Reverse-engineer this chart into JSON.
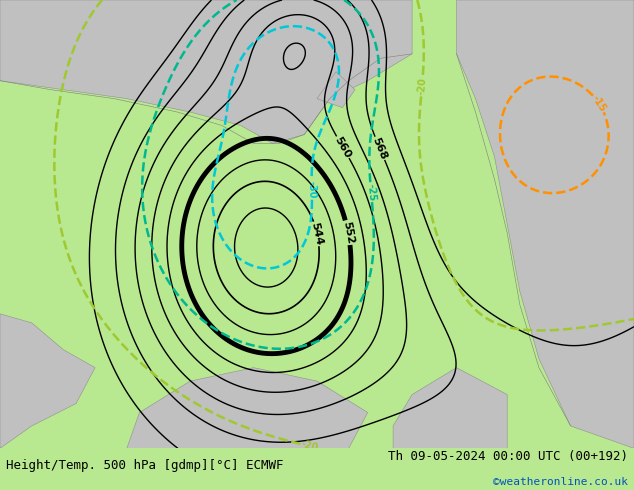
{
  "title_left": "Height/Temp. 500 hPa [gdmp][°C] ECMWF",
  "title_right": "Th 09-05-2024 00:00 UTC (00+192)",
  "watermark": "©weatheronline.co.uk",
  "background_color": "#b8e890",
  "land_color": "#c0c0c0",
  "bottom_bar_color": "#d0d0d0",
  "contour_black_color": "#000000",
  "contour_cyan_color": "#00c8d8",
  "contour_teal_color": "#00b890",
  "contour_green_color": "#a0c830",
  "contour_orange_color": "#ff9000",
  "title_fontsize": 9,
  "label_fontsize": 8,
  "figsize": [
    6.34,
    4.9
  ],
  "dpi": 100
}
